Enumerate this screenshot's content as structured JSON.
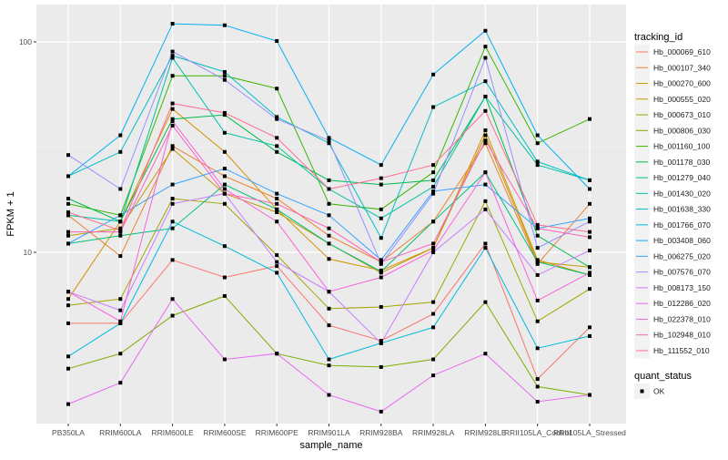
{
  "chart_data": {
    "type": "line",
    "title": "",
    "xlabel": "sample_name",
    "ylabel": "FPKM + 1",
    "y_scale": "log10",
    "ylim": [
      1.53,
      150
    ],
    "y_ticks": [
      10,
      100
    ],
    "y_tick_labels": [
      "10",
      "100"
    ],
    "grid": true,
    "legend_position": "right",
    "categories": [
      "PB350LA",
      "RRIM600LA",
      "RRIM600LE",
      "RRIM600SE",
      "RRIM600PE",
      "RRIM901LA",
      "RRIM928BA",
      "RRIM928LA",
      "RRIM928LE",
      "RRII105LA_Control",
      "RRII105LA_Stressed"
    ],
    "legend": {
      "color_title": "tracking_id",
      "shape_title": "quant_status",
      "shape_entries": [
        "OK"
      ]
    },
    "series": [
      {
        "name": "Hb_000069_610",
        "color": "#F8766D",
        "values": [
          4.6,
          4.6,
          9.2,
          7.6,
          8.6,
          4.5,
          3.8,
          5.1,
          11,
          2.5,
          4.4
        ]
      },
      {
        "name": "Hb_000107_340",
        "color": "#EA8331",
        "values": [
          15,
          9.6,
          32,
          23,
          18,
          12,
          9,
          14,
          33,
          8.8,
          17
        ]
      },
      {
        "name": "Hb_000270_600",
        "color": "#D89000",
        "values": [
          6.0,
          14,
          48,
          30,
          16,
          9.3,
          8.2,
          10.5,
          38,
          9.2,
          7.8
        ]
      },
      {
        "name": "Hb_000555_020",
        "color": "#C09B00",
        "values": [
          12,
          13,
          31,
          19,
          15.5,
          11,
          8.0,
          10.5,
          36,
          9.0,
          8.5
        ]
      },
      {
        "name": "Hb_000673_010",
        "color": "#A3A500",
        "values": [
          5.6,
          6.0,
          18,
          17,
          9.7,
          5.4,
          5.5,
          5.8,
          17.5,
          4.7,
          6.7
        ]
      },
      {
        "name": "Hb_000806_030",
        "color": "#7CAE00",
        "values": [
          2.8,
          3.3,
          5.0,
          6.2,
          3.3,
          2.9,
          2.85,
          3.1,
          5.8,
          2.3,
          2.1
        ]
      },
      {
        "name": "Hb_001160_100",
        "color": "#39B600",
        "values": [
          17,
          15,
          69,
          69,
          60,
          17,
          16,
          24,
          95,
          33,
          43
        ]
      },
      {
        "name": "Hb_001178_030",
        "color": "#00BB4E",
        "values": [
          18,
          14,
          43,
          45,
          30,
          22,
          21,
          22,
          55,
          12,
          8.5
        ]
      },
      {
        "name": "Hb_001279_040",
        "color": "#00BF7D",
        "values": [
          11,
          12,
          13,
          21,
          16,
          11,
          8.1,
          14,
          24,
          9,
          7.8
        ]
      },
      {
        "name": "Hb_001430_020",
        "color": "#00C1A3",
        "values": [
          15,
          14,
          84,
          37,
          32,
          20,
          14.5,
          20.5,
          55,
          26,
          22
        ]
      },
      {
        "name": "Hb_001638_330",
        "color": "#00BFC4",
        "values": [
          23,
          30,
          86,
          72,
          44,
          33,
          11.7,
          49,
          65,
          27,
          22
        ]
      },
      {
        "name": "Hb_001766_070",
        "color": "#00BAE0",
        "values": [
          3.2,
          4.6,
          14,
          10.7,
          8,
          3.1,
          3.7,
          4.4,
          10.5,
          3.5,
          4.0
        ]
      },
      {
        "name": "Hb_003408_060",
        "color": "#00B0F6",
        "values": [
          23,
          36,
          122,
          120,
          101,
          35,
          26,
          70,
          113,
          36,
          20
        ]
      },
      {
        "name": "Hb_006275_020",
        "color": "#35A2FF",
        "values": [
          11,
          15,
          21,
          25,
          19,
          15,
          9.2,
          19.5,
          21,
          13,
          14.5
        ]
      },
      {
        "name": "Hb_007576_070",
        "color": "#9590FF",
        "values": [
          29,
          20,
          90,
          66,
          43,
          34,
          8.8,
          19,
          84,
          10.5,
          14
        ]
      },
      {
        "name": "Hb_008173_150",
        "color": "#C77CFF",
        "values": [
          6.5,
          5.3,
          17,
          19,
          9,
          6.5,
          3.7,
          10,
          16,
          7.8,
          10.2
        ]
      },
      {
        "name": "Hb_012286_020",
        "color": "#E76BF3",
        "values": [
          1.9,
          2.4,
          6.0,
          3.1,
          3.3,
          2.1,
          1.75,
          2.6,
          3.3,
          1.95,
          2.1
        ]
      },
      {
        "name": "Hb_022378_010",
        "color": "#FA62DB",
        "values": [
          6.5,
          4.7,
          42,
          20,
          14,
          6.5,
          7.6,
          10.2,
          24,
          5.9,
          8.0
        ]
      },
      {
        "name": "Hb_102948_010",
        "color": "#FF62BC",
        "values": [
          12.5,
          12.5,
          40,
          19,
          17,
          13,
          9,
          11,
          34,
          13,
          11.8
        ]
      },
      {
        "name": "Hb_111552_010",
        "color": "#FF6C91",
        "values": [
          15.5,
          12.7,
          51,
          46,
          35,
          20,
          22.5,
          26,
          47,
          13.5,
          12.5
        ]
      }
    ]
  }
}
